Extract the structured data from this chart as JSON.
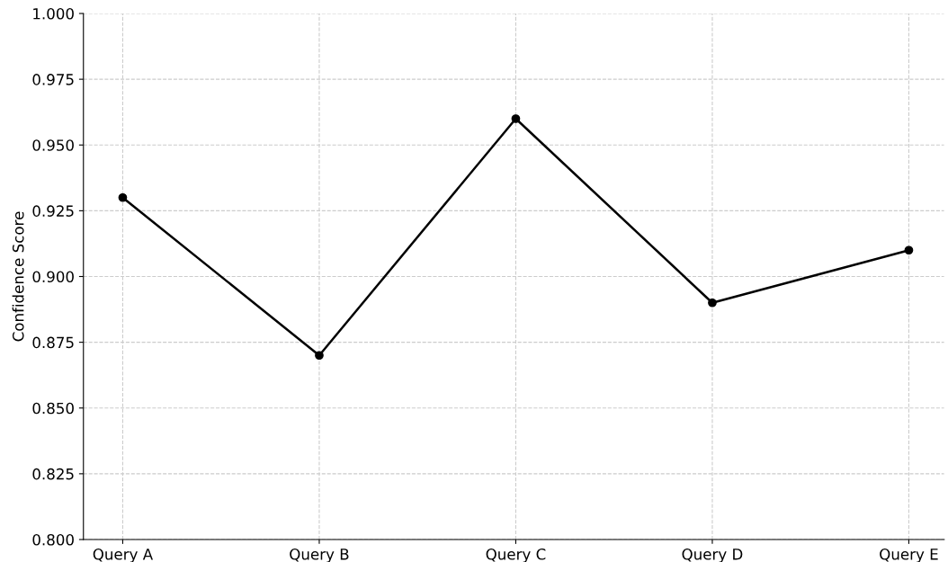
{
  "chart_data": {
    "type": "line",
    "ylabel": "Confidence Score",
    "categories": [
      "Query A",
      "Query B",
      "Query C",
      "Query D",
      "Query E"
    ],
    "series": [
      {
        "color": "#000000",
        "values": [
          0.93,
          0.87,
          0.96,
          0.89,
          0.91
        ]
      }
    ],
    "ylim": [
      0.8,
      1.0
    ],
    "yticks": [
      {
        "value": 0.8,
        "label": "0.800"
      },
      {
        "value": 0.825,
        "label": "0.825"
      },
      {
        "value": 0.85,
        "label": "0.850"
      },
      {
        "value": 0.875,
        "label": "0.875"
      },
      {
        "value": 0.9,
        "label": "0.900"
      },
      {
        "value": 0.925,
        "label": "0.925"
      },
      {
        "value": 0.95,
        "label": "0.950"
      },
      {
        "value": 0.975,
        "label": "0.975"
      },
      {
        "value": 1.0,
        "label": "1.000"
      }
    ],
    "grid": true,
    "marker": "circle",
    "line_style": "solid"
  }
}
